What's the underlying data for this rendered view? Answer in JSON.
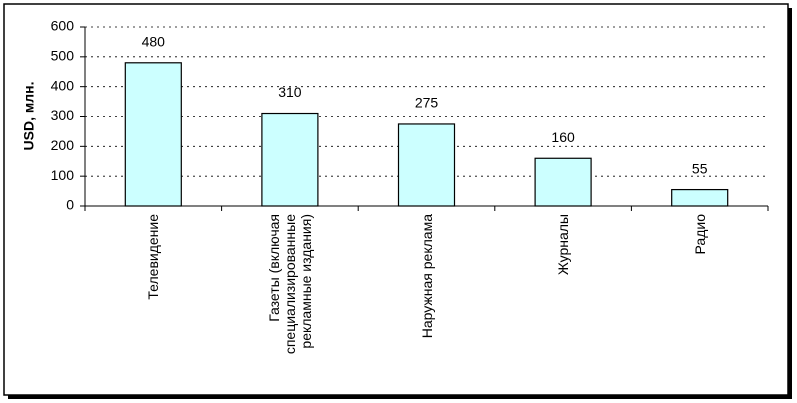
{
  "chart_data": {
    "type": "bar",
    "y_label": "USD, млн.",
    "categories": [
      "Телевидение",
      "Газеты (включая специализированные рекламные издания)",
      "Наружная реклама",
      "Журналы",
      "Радио"
    ],
    "values": [
      480,
      310,
      275,
      160,
      55
    ],
    "color": "#ccffff",
    "ylim": [
      0,
      600
    ],
    "yticks": [
      0,
      100,
      200,
      300,
      400,
      500,
      600
    ],
    "grid": true
  }
}
